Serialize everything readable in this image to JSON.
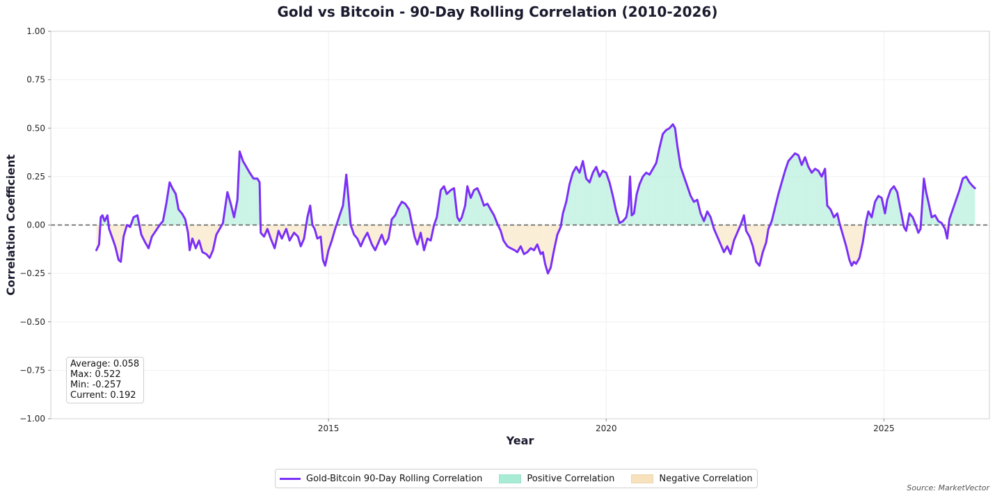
{
  "chart_data": {
    "type": "line",
    "title": "Gold vs Bitcoin - 90-Day Rolling Correlation (2010-2026)",
    "xlabel": "Year",
    "ylabel": "Correlation Coefficient",
    "xlim": [
      2010.0,
      2026.9
    ],
    "ylim": [
      -1.0,
      1.0
    ],
    "x_tick_labels": [
      "2015",
      "2020",
      "2025"
    ],
    "x_tick_values": [
      2015,
      2020,
      2025
    ],
    "y_tick_values": [
      1.0,
      0.75,
      0.5,
      0.25,
      0.0,
      -0.25,
      -0.5,
      -0.75,
      -1.0
    ],
    "y_tick_labels": [
      "1.00",
      "0.75",
      "0.50",
      "0.25",
      "0.00",
      "−0.25",
      "−0.50",
      "−0.75",
      "−1.00"
    ],
    "grid": true,
    "zero_line": {
      "y": 0.0,
      "style": "dashed"
    },
    "legend_position": "bottom-center",
    "series": [
      {
        "name": "Gold-Bitcoin 90-Day Rolling Correlation",
        "color": "#7b2ff7",
        "points": [
          [
            2010.82,
            -0.13
          ],
          [
            2010.87,
            -0.1
          ],
          [
            2010.9,
            0.04
          ],
          [
            2010.93,
            0.05
          ],
          [
            2010.97,
            0.02
          ],
          [
            2011.02,
            0.05
          ],
          [
            2011.05,
            -0.02
          ],
          [
            2011.1,
            -0.06
          ],
          [
            2011.16,
            -0.11
          ],
          [
            2011.22,
            -0.18
          ],
          [
            2011.26,
            -0.19
          ],
          [
            2011.31,
            -0.06
          ],
          [
            2011.37,
            0.0
          ],
          [
            2011.43,
            -0.01
          ],
          [
            2011.49,
            0.04
          ],
          [
            2011.56,
            0.05
          ],
          [
            2011.63,
            -0.05
          ],
          [
            2011.7,
            -0.09
          ],
          [
            2011.76,
            -0.12
          ],
          [
            2011.82,
            -0.06
          ],
          [
            2011.89,
            -0.03
          ],
          [
            2011.96,
            0.0
          ],
          [
            2012.02,
            0.02
          ],
          [
            2012.08,
            0.11
          ],
          [
            2012.14,
            0.22
          ],
          [
            2012.19,
            0.19
          ],
          [
            2012.25,
            0.16
          ],
          [
            2012.3,
            0.08
          ],
          [
            2012.36,
            0.06
          ],
          [
            2012.42,
            0.03
          ],
          [
            2012.47,
            -0.04
          ],
          [
            2012.5,
            -0.13
          ],
          [
            2012.55,
            -0.07
          ],
          [
            2012.61,
            -0.12
          ],
          [
            2012.67,
            -0.08
          ],
          [
            2012.73,
            -0.14
          ],
          [
            2012.8,
            -0.15
          ],
          [
            2012.86,
            -0.17
          ],
          [
            2012.92,
            -0.13
          ],
          [
            2012.98,
            -0.05
          ],
          [
            2013.04,
            -0.02
          ],
          [
            2013.1,
            0.01
          ],
          [
            2013.18,
            0.17
          ],
          [
            2013.24,
            0.11
          ],
          [
            2013.3,
            0.04
          ],
          [
            2013.36,
            0.13
          ],
          [
            2013.4,
            0.38
          ],
          [
            2013.46,
            0.33
          ],
          [
            2013.52,
            0.3
          ],
          [
            2013.58,
            0.27
          ],
          [
            2013.65,
            0.24
          ],
          [
            2013.72,
            0.24
          ],
          [
            2013.76,
            0.22
          ],
          [
            2013.78,
            -0.04
          ],
          [
            2013.84,
            -0.06
          ],
          [
            2013.9,
            -0.02
          ],
          [
            2013.96,
            -0.07
          ],
          [
            2014.03,
            -0.12
          ],
          [
            2014.1,
            -0.03
          ],
          [
            2014.16,
            -0.07
          ],
          [
            2014.24,
            -0.02
          ],
          [
            2014.3,
            -0.08
          ],
          [
            2014.38,
            -0.04
          ],
          [
            2014.45,
            -0.06
          ],
          [
            2014.5,
            -0.11
          ],
          [
            2014.56,
            -0.07
          ],
          [
            2014.62,
            0.04
          ],
          [
            2014.67,
            0.1
          ],
          [
            2014.71,
            0.0
          ],
          [
            2014.75,
            -0.02
          ],
          [
            2014.8,
            -0.07
          ],
          [
            2014.86,
            -0.06
          ],
          [
            2014.9,
            -0.18
          ],
          [
            2014.94,
            -0.21
          ],
          [
            2015.0,
            -0.13
          ],
          [
            2015.06,
            -0.08
          ],
          [
            2015.12,
            -0.02
          ],
          [
            2015.2,
            0.05
          ],
          [
            2015.26,
            0.1
          ],
          [
            2015.32,
            0.26
          ],
          [
            2015.36,
            0.14
          ],
          [
            2015.4,
            0.0
          ],
          [
            2015.46,
            -0.05
          ],
          [
            2015.52,
            -0.07
          ],
          [
            2015.58,
            -0.11
          ],
          [
            2015.64,
            -0.07
          ],
          [
            2015.7,
            -0.04
          ],
          [
            2015.78,
            -0.1
          ],
          [
            2015.84,
            -0.13
          ],
          [
            2015.9,
            -0.09
          ],
          [
            2015.96,
            -0.05
          ],
          [
            2016.02,
            -0.1
          ],
          [
            2016.08,
            -0.07
          ],
          [
            2016.14,
            0.03
          ],
          [
            2016.2,
            0.05
          ],
          [
            2016.26,
            0.09
          ],
          [
            2016.32,
            0.12
          ],
          [
            2016.38,
            0.11
          ],
          [
            2016.45,
            0.08
          ],
          [
            2016.5,
            0.01
          ],
          [
            2016.55,
            -0.06
          ],
          [
            2016.6,
            -0.1
          ],
          [
            2016.66,
            -0.04
          ],
          [
            2016.72,
            -0.13
          ],
          [
            2016.78,
            -0.07
          ],
          [
            2016.84,
            -0.08
          ],
          [
            2016.9,
            0.0
          ],
          [
            2016.95,
            0.04
          ],
          [
            2017.02,
            0.18
          ],
          [
            2017.08,
            0.2
          ],
          [
            2017.13,
            0.16
          ],
          [
            2017.2,
            0.18
          ],
          [
            2017.26,
            0.19
          ],
          [
            2017.32,
            0.04
          ],
          [
            2017.36,
            0.02
          ],
          [
            2017.4,
            0.04
          ],
          [
            2017.46,
            0.1
          ],
          [
            2017.5,
            0.2
          ],
          [
            2017.56,
            0.14
          ],
          [
            2017.62,
            0.18
          ],
          [
            2017.68,
            0.19
          ],
          [
            2017.74,
            0.15
          ],
          [
            2017.8,
            0.1
          ],
          [
            2017.86,
            0.11
          ],
          [
            2017.92,
            0.08
          ],
          [
            2017.98,
            0.05
          ],
          [
            2018.05,
            0.0
          ],
          [
            2018.1,
            -0.03
          ],
          [
            2018.15,
            -0.08
          ],
          [
            2018.22,
            -0.11
          ],
          [
            2018.28,
            -0.12
          ],
          [
            2018.35,
            -0.13
          ],
          [
            2018.4,
            -0.14
          ],
          [
            2018.46,
            -0.11
          ],
          [
            2018.52,
            -0.15
          ],
          [
            2018.58,
            -0.14
          ],
          [
            2018.64,
            -0.12
          ],
          [
            2018.7,
            -0.13
          ],
          [
            2018.76,
            -0.1
          ],
          [
            2018.82,
            -0.15
          ],
          [
            2018.86,
            -0.14
          ],
          [
            2018.9,
            -0.2
          ],
          [
            2018.95,
            -0.25
          ],
          [
            2019.0,
            -0.22
          ],
          [
            2019.06,
            -0.13
          ],
          [
            2019.12,
            -0.05
          ],
          [
            2019.18,
            -0.01
          ],
          [
            2019.22,
            0.06
          ],
          [
            2019.28,
            0.12
          ],
          [
            2019.34,
            0.21
          ],
          [
            2019.4,
            0.27
          ],
          [
            2019.46,
            0.3
          ],
          [
            2019.52,
            0.27
          ],
          [
            2019.58,
            0.33
          ],
          [
            2019.64,
            0.24
          ],
          [
            2019.7,
            0.22
          ],
          [
            2019.76,
            0.27
          ],
          [
            2019.82,
            0.3
          ],
          [
            2019.88,
            0.25
          ],
          [
            2019.94,
            0.28
          ],
          [
            2020.0,
            0.27
          ],
          [
            2020.06,
            0.22
          ],
          [
            2020.12,
            0.15
          ],
          [
            2020.18,
            0.07
          ],
          [
            2020.24,
            0.01
          ],
          [
            2020.3,
            0.02
          ],
          [
            2020.36,
            0.04
          ],
          [
            2020.4,
            0.1
          ],
          [
            2020.43,
            0.25
          ],
          [
            2020.46,
            0.05
          ],
          [
            2020.5,
            0.06
          ],
          [
            2020.55,
            0.16
          ],
          [
            2020.6,
            0.21
          ],
          [
            2020.66,
            0.25
          ],
          [
            2020.72,
            0.27
          ],
          [
            2020.78,
            0.26
          ],
          [
            2020.84,
            0.29
          ],
          [
            2020.9,
            0.32
          ],
          [
            2020.96,
            0.4
          ],
          [
            2021.02,
            0.47
          ],
          [
            2021.08,
            0.49
          ],
          [
            2021.14,
            0.5
          ],
          [
            2021.2,
            0.52
          ],
          [
            2021.24,
            0.5
          ],
          [
            2021.28,
            0.41
          ],
          [
            2021.34,
            0.3
          ],
          [
            2021.4,
            0.25
          ],
          [
            2021.46,
            0.2
          ],
          [
            2021.52,
            0.15
          ],
          [
            2021.58,
            0.12
          ],
          [
            2021.64,
            0.13
          ],
          [
            2021.7,
            0.06
          ],
          [
            2021.76,
            0.02
          ],
          [
            2021.82,
            0.07
          ],
          [
            2021.88,
            0.04
          ],
          [
            2021.94,
            -0.02
          ],
          [
            2022.0,
            -0.06
          ],
          [
            2022.06,
            -0.1
          ],
          [
            2022.12,
            -0.14
          ],
          [
            2022.18,
            -0.11
          ],
          [
            2022.24,
            -0.15
          ],
          [
            2022.3,
            -0.08
          ],
          [
            2022.36,
            -0.04
          ],
          [
            2022.42,
            0.0
          ],
          [
            2022.48,
            0.05
          ],
          [
            2022.52,
            -0.03
          ],
          [
            2022.58,
            -0.06
          ],
          [
            2022.64,
            -0.11
          ],
          [
            2022.7,
            -0.19
          ],
          [
            2022.76,
            -0.21
          ],
          [
            2022.82,
            -0.14
          ],
          [
            2022.88,
            -0.09
          ],
          [
            2022.92,
            -0.02
          ],
          [
            2022.98,
            0.02
          ],
          [
            2023.04,
            0.09
          ],
          [
            2023.1,
            0.16
          ],
          [
            2023.16,
            0.22
          ],
          [
            2023.22,
            0.28
          ],
          [
            2023.28,
            0.33
          ],
          [
            2023.34,
            0.35
          ],
          [
            2023.4,
            0.37
          ],
          [
            2023.46,
            0.36
          ],
          [
            2023.52,
            0.31
          ],
          [
            2023.58,
            0.35
          ],
          [
            2023.64,
            0.3
          ],
          [
            2023.7,
            0.27
          ],
          [
            2023.76,
            0.29
          ],
          [
            2023.82,
            0.28
          ],
          [
            2023.88,
            0.25
          ],
          [
            2023.94,
            0.29
          ],
          [
            2023.98,
            0.1
          ],
          [
            2024.04,
            0.08
          ],
          [
            2024.1,
            0.04
          ],
          [
            2024.16,
            0.06
          ],
          [
            2024.2,
            0.01
          ],
          [
            2024.26,
            -0.05
          ],
          [
            2024.32,
            -0.11
          ],
          [
            2024.38,
            -0.18
          ],
          [
            2024.42,
            -0.21
          ],
          [
            2024.46,
            -0.19
          ],
          [
            2024.5,
            -0.2
          ],
          [
            2024.56,
            -0.17
          ],
          [
            2024.62,
            -0.09
          ],
          [
            2024.68,
            0.02
          ],
          [
            2024.72,
            0.07
          ],
          [
            2024.78,
            0.04
          ],
          [
            2024.84,
            0.12
          ],
          [
            2024.9,
            0.15
          ],
          [
            2024.96,
            0.14
          ],
          [
            2025.02,
            0.06
          ],
          [
            2025.06,
            0.13
          ],
          [
            2025.12,
            0.18
          ],
          [
            2025.18,
            0.2
          ],
          [
            2025.24,
            0.17
          ],
          [
            2025.3,
            0.08
          ],
          [
            2025.36,
            -0.01
          ],
          [
            2025.4,
            -0.03
          ],
          [
            2025.46,
            0.06
          ],
          [
            2025.52,
            0.04
          ],
          [
            2025.56,
            0.01
          ],
          [
            2025.62,
            -0.04
          ],
          [
            2025.66,
            -0.02
          ],
          [
            2025.72,
            0.24
          ],
          [
            2025.76,
            0.17
          ],
          [
            2025.8,
            0.12
          ],
          [
            2025.86,
            0.04
          ],
          [
            2025.92,
            0.05
          ],
          [
            2025.98,
            0.02
          ],
          [
            2026.04,
            0.01
          ],
          [
            2026.1,
            -0.02
          ],
          [
            2026.14,
            -0.07
          ],
          [
            2026.18,
            0.03
          ],
          [
            2026.24,
            0.08
          ],
          [
            2026.3,
            0.13
          ],
          [
            2026.36,
            0.18
          ],
          [
            2026.42,
            0.24
          ],
          [
            2026.48,
            0.25
          ],
          [
            2026.54,
            0.22
          ],
          [
            2026.6,
            0.2
          ],
          [
            2026.64,
            0.19
          ]
        ]
      }
    ],
    "fill_areas": [
      {
        "name": "Positive Correlation",
        "color": "#a8ecd6",
        "condition": "y > 0"
      },
      {
        "name": "Negative Correlation",
        "color": "#f8e2bd",
        "condition": "y < 0"
      }
    ],
    "stats": {
      "average": "Average: 0.058",
      "max": "Max: 0.522",
      "min": "Min: -0.257",
      "current": "Current: 0.192"
    },
    "source": "Source: MarketVector"
  }
}
